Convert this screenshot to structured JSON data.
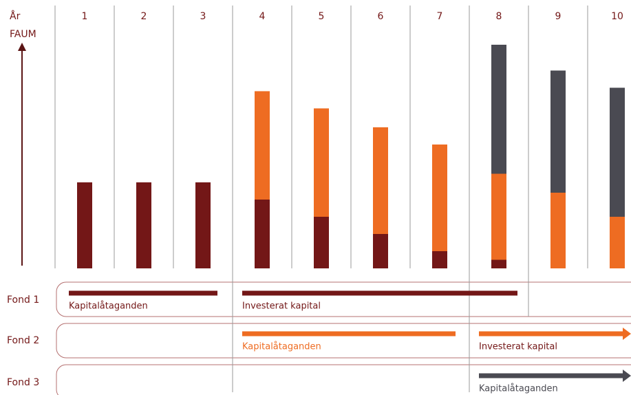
{
  "chart_data": {
    "type": "bar",
    "stacked": true,
    "row_header": "År",
    "y_axis_label": "FAUM",
    "categories": [
      "1",
      "2",
      "3",
      "4",
      "5",
      "6",
      "7",
      "8",
      "9",
      "10"
    ],
    "ylim": [
      0,
      14
    ],
    "series": [
      {
        "name": "Fond 1",
        "color": "#731717",
        "values": [
          5,
          5,
          5,
          4,
          3,
          2,
          1,
          0.5,
          null,
          null
        ],
        "phases": [
          {
            "label": "Kapitalåtaganden"
          },
          {
            "label": "Investerat kapital"
          }
        ]
      },
      {
        "name": "Fond 2",
        "color": "#ee6c22",
        "values": [
          null,
          null,
          null,
          6.3,
          6.3,
          6.2,
          6.2,
          5,
          4.4,
          3
        ],
        "phases": [
          {
            "label": "Kapitalåtaganden"
          },
          {
            "label": "Investerat kapital"
          }
        ]
      },
      {
        "name": "Fond 3",
        "color": "#4a4a52",
        "values": [
          null,
          null,
          null,
          null,
          null,
          null,
          null,
          7.5,
          7.1,
          7.5
        ],
        "phases": [
          {
            "label": "Kapitalåtaganden"
          }
        ]
      }
    ]
  }
}
